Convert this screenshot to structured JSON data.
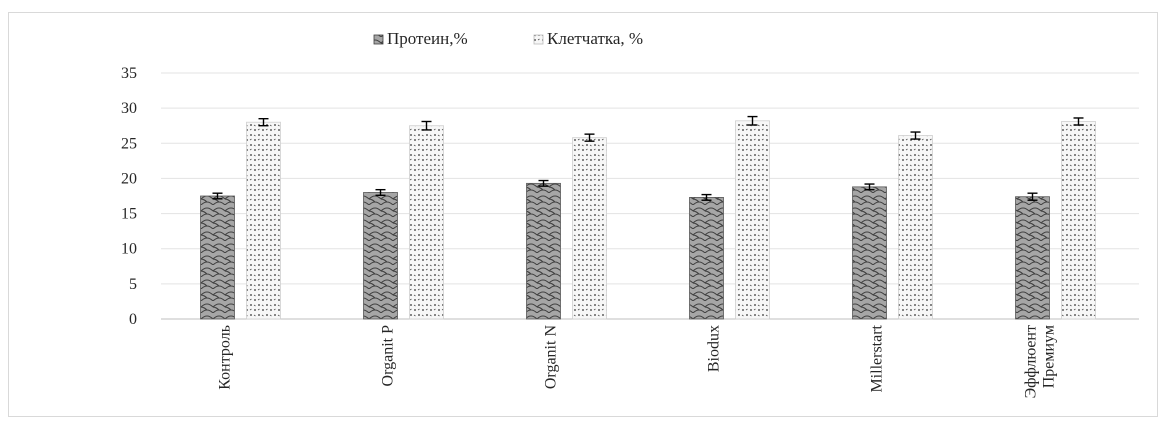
{
  "chart_data": {
    "type": "bar",
    "title": "",
    "xlabel": "",
    "ylabel": "",
    "ylim": [
      0,
      35
    ],
    "y_ticks": [
      "0",
      "5",
      "10",
      "15",
      "20",
      "25",
      "30",
      "35"
    ],
    "grid": true,
    "legend_position": "top-center",
    "error_bars": true,
    "categories": [
      [
        "Контроль"
      ],
      [
        "Organit P"
      ],
      [
        "Organit N"
      ],
      [
        "Biodux"
      ],
      [
        "Millerstart"
      ],
      [
        "Эффлюент",
        "Премиум"
      ]
    ],
    "series": [
      {
        "name": "Протеин,%",
        "values": [
          17.5,
          18.0,
          19.3,
          17.3,
          18.8,
          17.4
        ],
        "errors": [
          0.4,
          0.4,
          0.4,
          0.4,
          0.4,
          0.5
        ],
        "color": "#a6a6a6",
        "pattern": "scales"
      },
      {
        "name": "Клетчатка, %",
        "values": [
          28.0,
          27.5,
          25.8,
          28.2,
          26.1,
          28.1
        ],
        "errors": [
          0.5,
          0.6,
          0.5,
          0.6,
          0.5,
          0.5
        ],
        "color": "#f2f2f2",
        "pattern": "dots"
      }
    ]
  }
}
